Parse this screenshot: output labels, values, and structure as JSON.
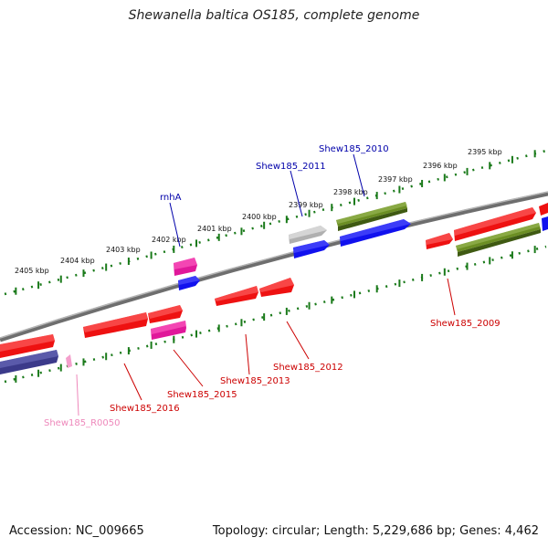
{
  "title": "Shewanella baltica OS185, complete genome",
  "footer": {
    "accession": "Accession: NC_009665",
    "summary": "Topology: circular; Length: 5,229,686 bp; Genes: 4,462"
  },
  "colors": {
    "backbone": "#8a8a8a",
    "tick": "#1a7a1a",
    "red": "#ee1111",
    "blue": "#1111ee",
    "magenta": "#e0189a",
    "olive": "#6b8e23",
    "gray": "#b0b0b0",
    "navy": "#3b3a8a",
    "pink": "#f4a0cc",
    "label_red": "#cc0000",
    "label_blue": "#0000aa",
    "label_pink": "#ee88bb"
  },
  "ruler_labels": [
    "2395 kbp",
    "2396 kbp",
    "2397 kbp",
    "2398 kbp",
    "2399 kbp",
    "2400 kbp",
    "2401 kbp",
    "2402 kbp",
    "2403 kbp",
    "2404 kbp",
    "2405 kbp"
  ],
  "gene_labels": {
    "shew2010": "Shew185_2010",
    "shew2011": "Shew185_2011",
    "rnha": "rnhA",
    "shew2009": "Shew185_2009",
    "shew2012": "Shew185_2012",
    "shew2013": "Shew185_2013",
    "shew2015": "Shew185_2015",
    "shew2016": "Shew185_2016",
    "shewR0050": "Shew185_R0050"
  }
}
